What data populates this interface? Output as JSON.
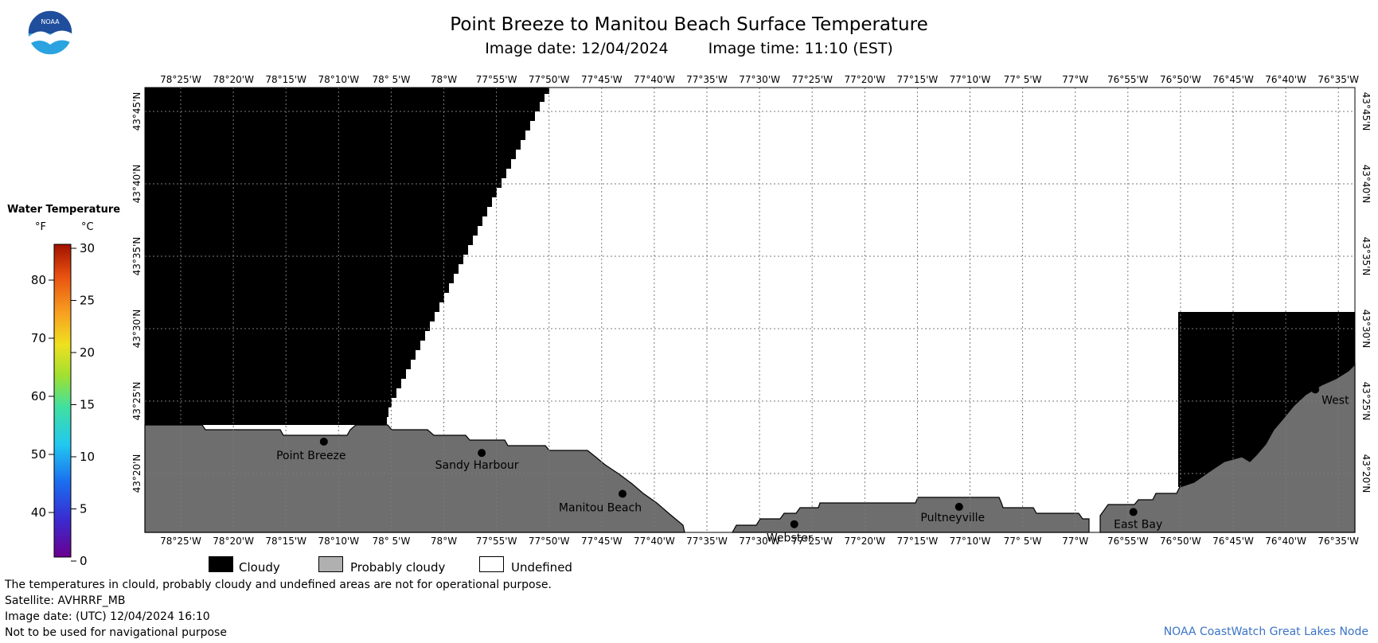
{
  "title": "Point Breeze to Manitou Beach Surface Temperature",
  "image_date": "Image date: 12/04/2024",
  "image_time": "Image time: 11:10 (EST)",
  "logo": {
    "text": "NOAA",
    "colors": {
      "top": "#1f4e9c",
      "bottom": "#2aa3e0",
      "bird": "#ffffff"
    }
  },
  "colors": {
    "cloudy": "#000000",
    "probably_cloudy": "#6e6e6e",
    "probably_cloudy_swatch": "#b0b0b0",
    "undefined": "#ffffff",
    "grid": "#7a7a7a"
  },
  "lon_labels": [
    "78°25'W",
    "78°20'W",
    "78°15'W",
    "78°10'W",
    "78° 5'W",
    "78°W",
    "77°55'W",
    "77°50'W",
    "77°45'W",
    "77°40'W",
    "77°35'W",
    "77°30'W",
    "77°25'W",
    "77°20'W",
    "77°15'W",
    "77°10'W",
    "77° 5'W",
    "77°W",
    "76°55'W",
    "76°50'W",
    "76°45'W",
    "76°40'W",
    "76°35'W"
  ],
  "lat_labels": [
    "43°45'N",
    "43°40'N",
    "43°35'N",
    "43°30'N",
    "43°25'N",
    "43°20'N"
  ],
  "places": [
    {
      "name": "Point Breeze",
      "lat": 43.37,
      "lon": -78.19
    },
    {
      "name": "Sandy Harbour",
      "lat": 43.357,
      "lon": -77.94
    },
    {
      "name": "Manitou Beach",
      "lat": 43.31,
      "lon": -77.717
    },
    {
      "name": "Webster",
      "lat": 43.275,
      "lon": -77.445
    },
    {
      "name": "Pultneyville",
      "lat": 43.295,
      "lon": -77.184
    },
    {
      "name": "East Bay",
      "lat": 43.289,
      "lon": -76.908
    },
    {
      "name": "West",
      "lat": 43.43,
      "lon": -76.62
    }
  ],
  "temperature_scale": {
    "title": "Water Temperature",
    "unit_f": "°F",
    "unit_c": "°C",
    "f_ticks": [
      "80",
      "70",
      "60",
      "50",
      "40"
    ],
    "c_ticks": [
      "30",
      "25",
      "20",
      "15",
      "10",
      "5",
      "0"
    ]
  },
  "legend": {
    "cloudy": "Cloudy",
    "probably_cloudy": "Probably cloudy",
    "undefined": "Undefined"
  },
  "notes": [
    "The temperatures in clould, probably cloudy and undefined areas are not for operational purpose.",
    "Satellite: AVHRRF_MB",
    "Image date: (UTC) 12/04/2024  16:10",
    "Not to be used for navigational purpose"
  ],
  "node_credit": "NOAA CoastWatch Great Lakes Node"
}
